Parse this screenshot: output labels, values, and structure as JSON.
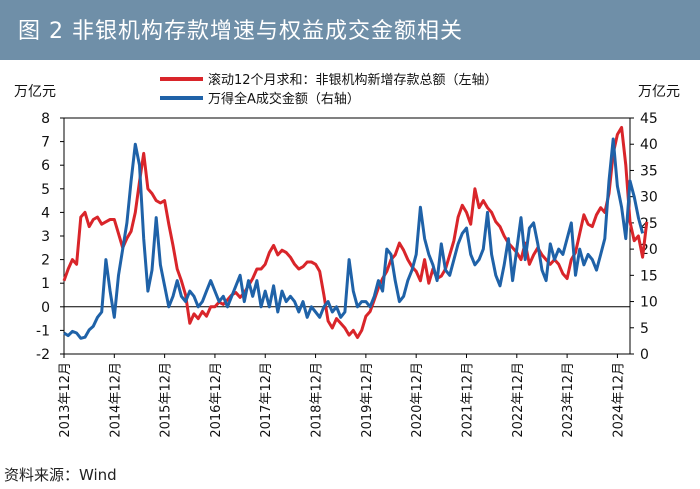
{
  "header": {
    "title": "图 2   非银机构存款增速与权益成交金额相关"
  },
  "source": "资料来源：Wind",
  "chart_data": {
    "type": "line",
    "title": "图 2   非银机构存款增速与权益成交金额相关",
    "y_left": {
      "unit": "万亿元",
      "ylim": [
        -2,
        8
      ],
      "ticks": [
        -2,
        -1,
        0,
        1,
        2,
        3,
        4,
        5,
        6,
        7,
        8
      ]
    },
    "y_right": {
      "unit": "万亿元",
      "ylim": [
        0,
        45
      ],
      "ticks": [
        0,
        5,
        10,
        15,
        20,
        25,
        30,
        35,
        40,
        45
      ]
    },
    "x_range": [
      "2013-12",
      "2025-03"
    ],
    "x_ticks": [
      "2013年12月",
      "2014年12月",
      "2015年12月",
      "2016年12月",
      "2017年12月",
      "2018年12月",
      "2019年12月",
      "2020年12月",
      "2021年12月",
      "2022年12月",
      "2023年12月",
      "2024年12月"
    ],
    "legend_position": "top",
    "series": [
      {
        "name": "滚动12个月求和：非银机构新增存款总额（左轴）",
        "axis": "left",
        "color": "#d9252a",
        "values": [
          1.1,
          1.6,
          2.0,
          1.8,
          3.8,
          4.0,
          3.4,
          3.7,
          3.8,
          3.5,
          3.6,
          3.7,
          3.7,
          3.1,
          2.5,
          2.9,
          3.2,
          4.0,
          5.3,
          6.5,
          5.0,
          4.8,
          4.5,
          4.4,
          4.5,
          3.5,
          2.6,
          1.6,
          1.1,
          0.5,
          -0.7,
          -0.3,
          -0.5,
          -0.2,
          -0.4,
          0.0,
          0.0,
          0.2,
          0.1,
          0.3,
          0.5,
          0.6,
          0.4,
          0.6,
          0.9,
          1.2,
          1.6,
          1.6,
          1.8,
          2.3,
          2.6,
          2.2,
          2.4,
          2.3,
          2.1,
          1.8,
          1.6,
          1.7,
          1.9,
          1.9,
          1.8,
          1.5,
          0.5,
          -0.6,
          -0.9,
          -0.5,
          -0.7,
          -0.9,
          -1.2,
          -1.0,
          -1.3,
          -1.0,
          -0.4,
          -0.2,
          0.3,
          0.8,
          1.2,
          1.5,
          2.0,
          2.2,
          2.7,
          2.4,
          2.0,
          1.7,
          1.5,
          1.1,
          2.0,
          1.0,
          1.6,
          1.2,
          1.3,
          1.6,
          2.2,
          2.8,
          3.8,
          4.3,
          4.0,
          3.5,
          5.0,
          4.2,
          4.5,
          4.2,
          4.0,
          3.6,
          3.4,
          3.0,
          2.7,
          2.5,
          2.3,
          2.0,
          2.7,
          1.8,
          2.2,
          2.5,
          2.2,
          2.0,
          1.8,
          2.0,
          1.8,
          1.4,
          1.2,
          2.0,
          2.3,
          3.1,
          3.9,
          3.5,
          3.4,
          3.9,
          4.2,
          4.0,
          4.8,
          6.5,
          7.3,
          7.6,
          6.0,
          3.6,
          2.8,
          3.0,
          2.1,
          3.6
        ]
      },
      {
        "name": "万得全A成交金额（右轴）",
        "axis": "right",
        "color": "#1f62a8",
        "values": [
          4.0,
          3.5,
          4.3,
          4.0,
          3.0,
          3.2,
          4.6,
          5.3,
          7.0,
          8.0,
          18.0,
          12.0,
          7.0,
          15.0,
          20.0,
          25.0,
          33.0,
          40.0,
          36.0,
          22.0,
          12.0,
          16.0,
          26.0,
          17.0,
          13.0,
          9.0,
          11.0,
          14.0,
          11.0,
          10.0,
          12.0,
          11.0,
          9.0,
          10.0,
          12.0,
          14.0,
          12.0,
          10.0,
          11.0,
          9.0,
          11.0,
          13.0,
          15.0,
          10.0,
          14.0,
          11.0,
          14.0,
          9.0,
          12.0,
          9.0,
          13.0,
          8.0,
          12.0,
          10.0,
          11.0,
          10.0,
          8.0,
          10.0,
          7.0,
          9.0,
          8.0,
          7.0,
          9.0,
          10.0,
          8.0,
          9.0,
          7.0,
          8.0,
          18.0,
          12.0,
          9.0,
          10.0,
          10.0,
          9.0,
          11.0,
          14.0,
          12.0,
          20.0,
          19.0,
          14.0,
          10.0,
          11.0,
          14.0,
          16.0,
          19.0,
          28.0,
          22.0,
          19.0,
          17.0,
          14.0,
          21.0,
          16.0,
          15.0,
          18.0,
          21.0,
          23.0,
          24.0,
          19.0,
          17.0,
          18.0,
          20.0,
          27.0,
          19.0,
          15.0,
          13.0,
          17.0,
          22.0,
          14.0,
          20.0,
          26.0,
          18.0,
          24.0,
          25.0,
          21.0,
          16.0,
          14.0,
          21.0,
          18.0,
          20.0,
          19.0,
          22.0,
          25.0,
          15.0,
          20.0,
          17.0,
          19.0,
          18.0,
          16.0,
          19.0,
          22.0,
          33.0,
          41.0,
          32.0,
          28.0,
          22.0,
          33.0,
          30.0,
          26.0,
          23.0
        ]
      }
    ]
  }
}
